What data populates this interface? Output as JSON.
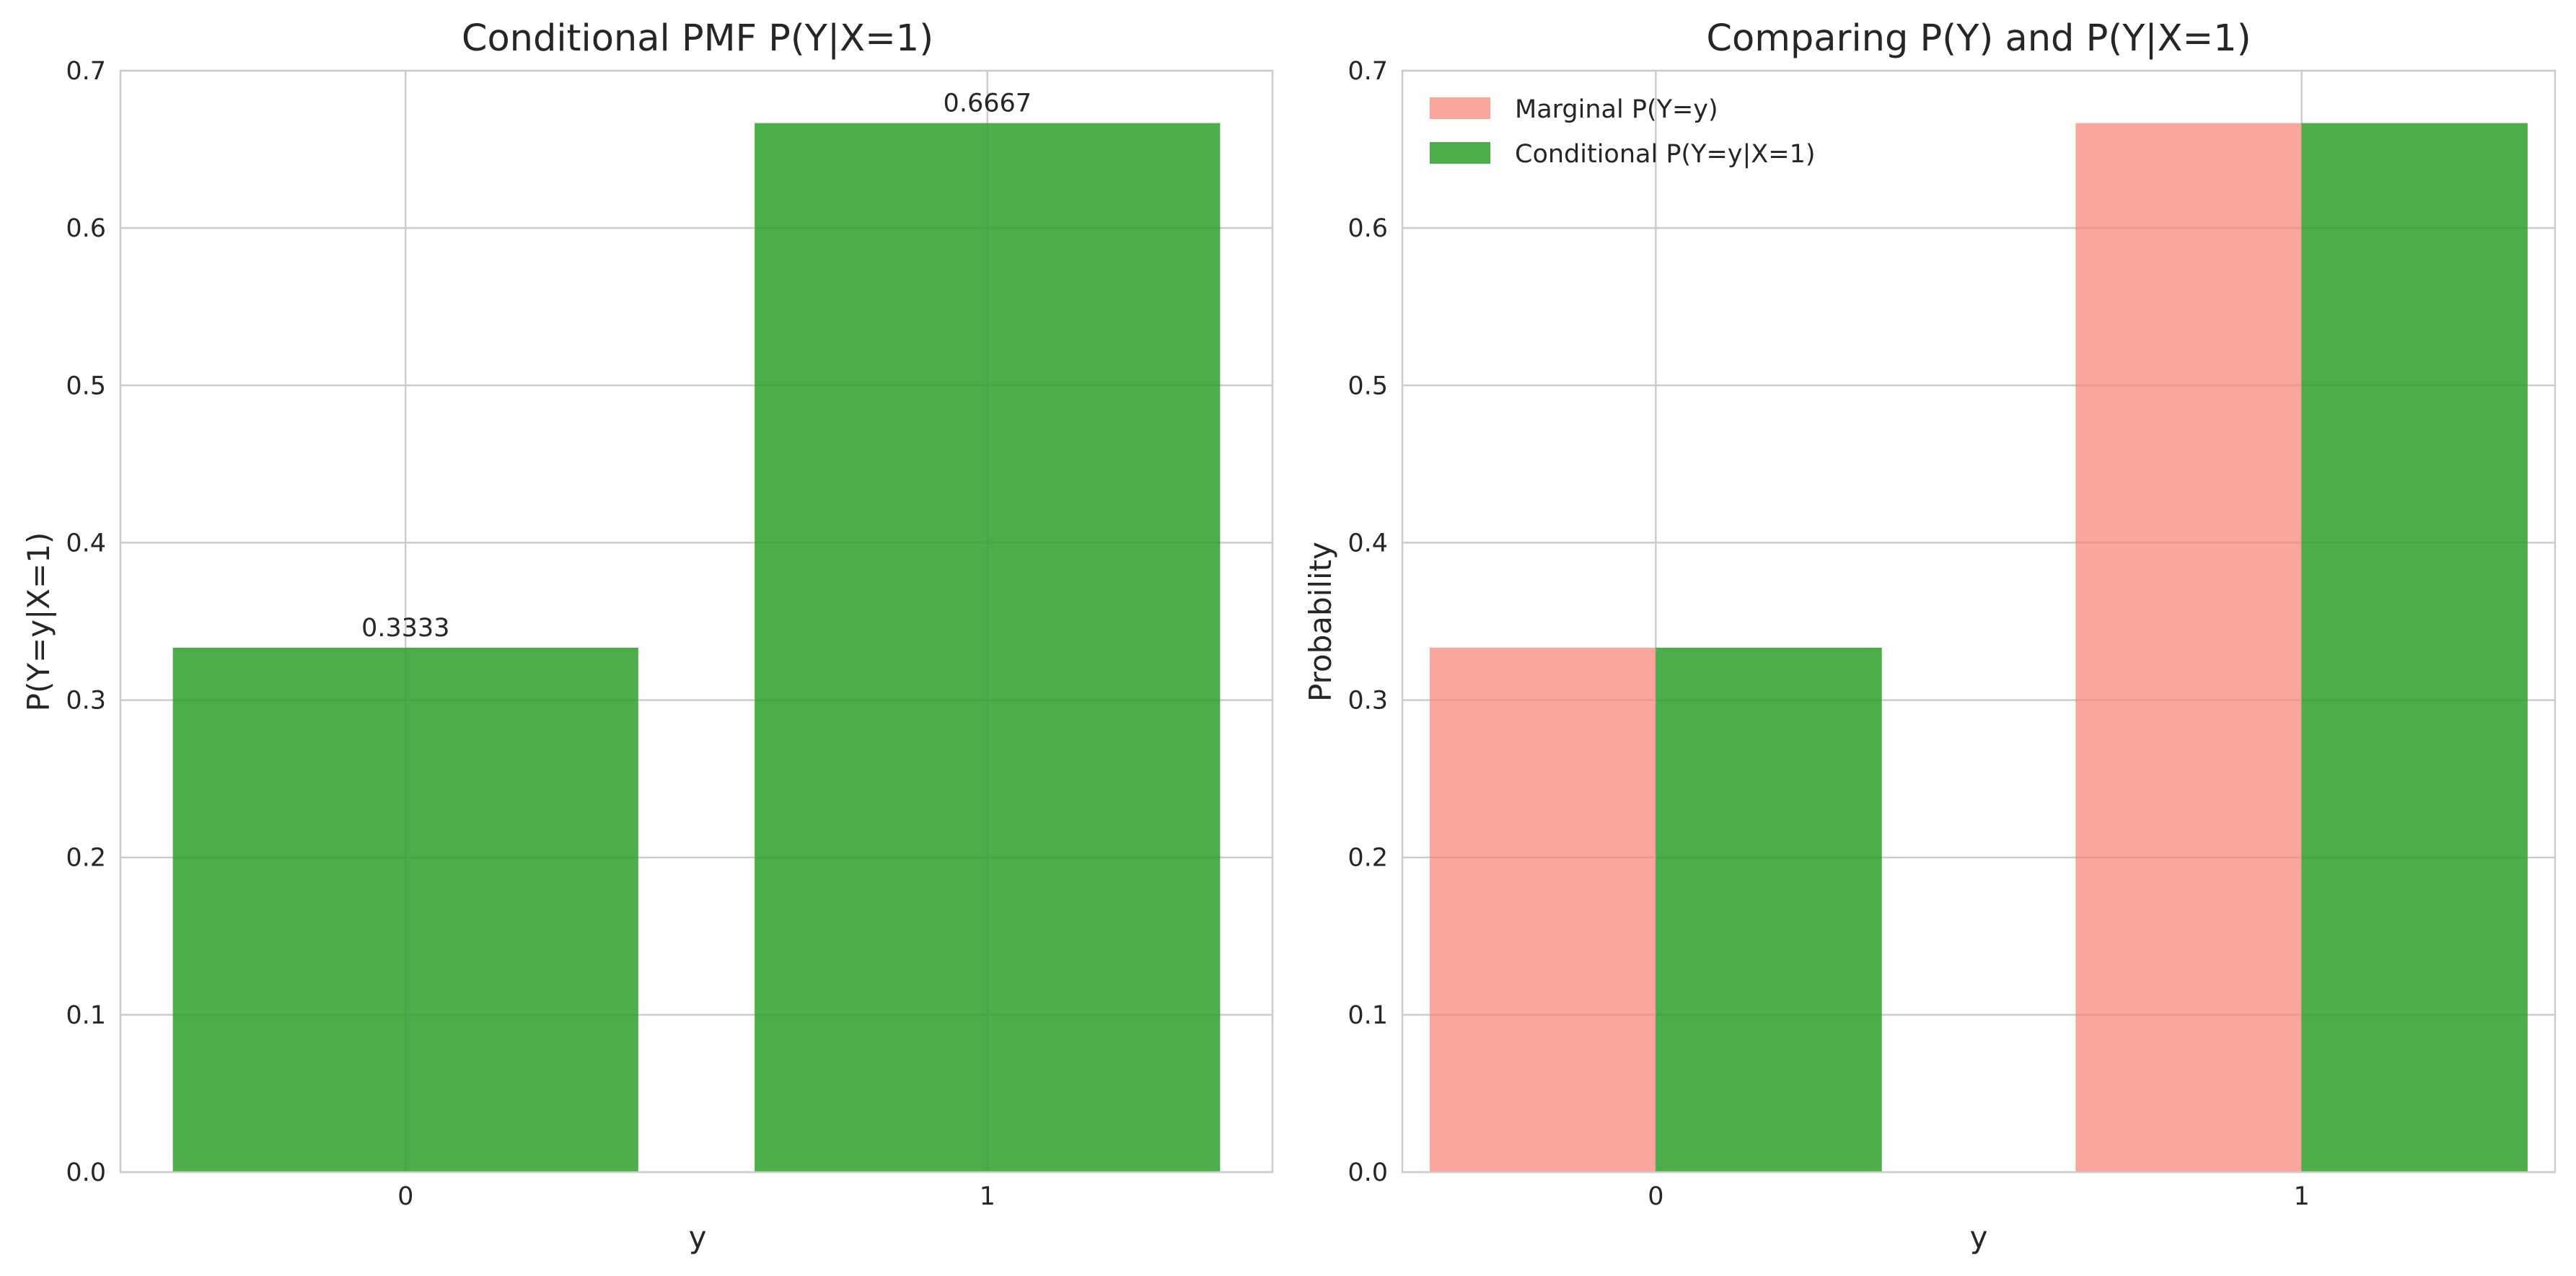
{
  "chart_data": [
    {
      "type": "bar",
      "title": "Conditional PMF P(Y|X=1)",
      "xlabel": "y",
      "ylabel": "P(Y=y|X=1)",
      "categories": [
        "0",
        "1"
      ],
      "series": [
        {
          "name": "",
          "values": [
            0.3333,
            0.6667
          ],
          "color": "#2ca02c",
          "opacity": 0.85
        }
      ],
      "data_labels": [
        "0.3333",
        "0.6667"
      ],
      "yticks": [
        "0.0",
        "0.1",
        "0.2",
        "0.3",
        "0.4",
        "0.5",
        "0.6",
        "0.7"
      ],
      "ylim": [
        0,
        0.7
      ],
      "grid": true,
      "legend": null
    },
    {
      "type": "bar",
      "title": "Comparing P(Y) and P(Y|X=1)",
      "xlabel": "y",
      "ylabel": "Probability",
      "categories": [
        "0",
        "1"
      ],
      "series": [
        {
          "name": "Marginal P(Y=y)",
          "values": [
            0.3333,
            0.6667
          ],
          "color": "#fa8072",
          "opacity": 0.7
        },
        {
          "name": "Conditional P(Y=y|X=1)",
          "values": [
            0.3333,
            0.6667
          ],
          "color": "#2ca02c",
          "opacity": 0.85
        }
      ],
      "yticks": [
        "0.0",
        "0.1",
        "0.2",
        "0.3",
        "0.4",
        "0.5",
        "0.6",
        "0.7"
      ],
      "ylim": [
        0,
        0.7
      ],
      "grid": true,
      "legend": "top-left"
    }
  ]
}
